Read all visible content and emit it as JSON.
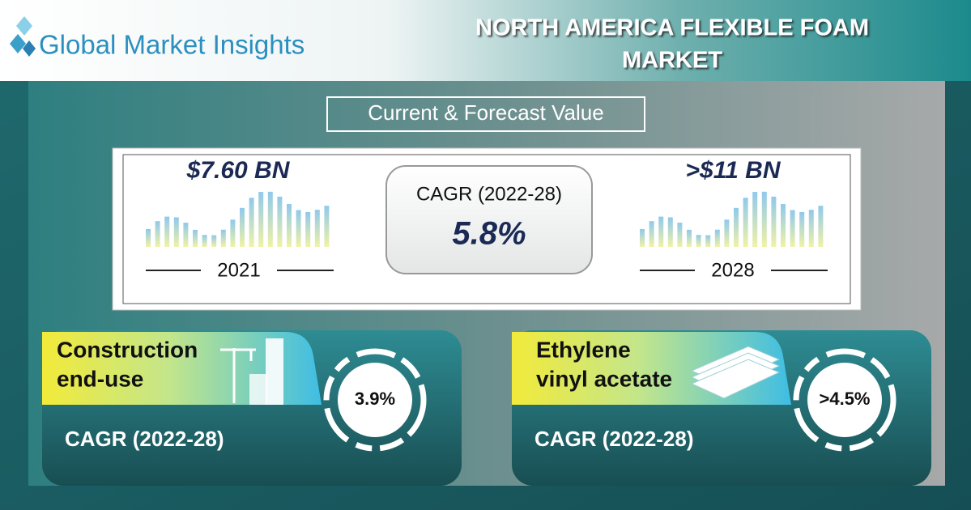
{
  "header": {
    "brand": "Global Market Insights",
    "title_lines": [
      "NORTH AMERICA FLEXIBLE FOAM",
      "MARKET"
    ]
  },
  "forecast": {
    "label": "Current & Forecast Value",
    "start": {
      "value": "$7.60 BN",
      "year": "2021"
    },
    "cagr": {
      "label": "CAGR (2022-28)",
      "value": "5.8%"
    },
    "end": {
      "value": ">$11 BN",
      "year": "2028"
    }
  },
  "segments": [
    {
      "label_lines": [
        "Construction",
        "end-use"
      ],
      "cagr_label": "CAGR (2022-28)",
      "cagr_value": "3.9%"
    },
    {
      "label_lines": [
        "Ethylene",
        "vinyl acetate"
      ],
      "cagr_label": "CAGR (2022-28)",
      "cagr_value": ">4.5%"
    }
  ]
}
